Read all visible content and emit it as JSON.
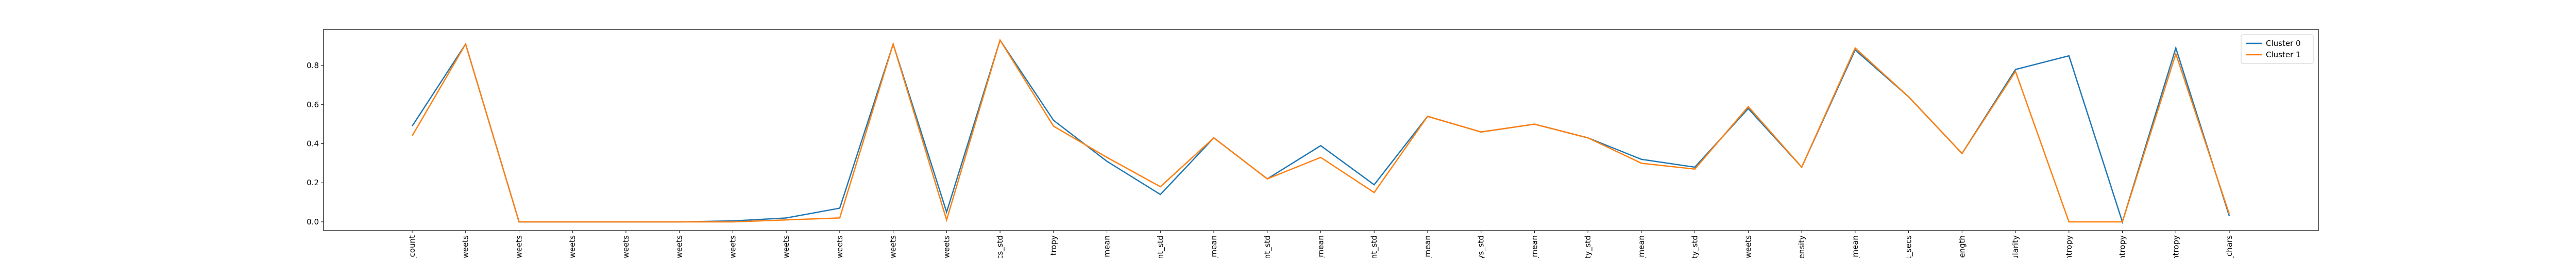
{
  "chart_data": {
    "type": "line",
    "categories": [
      "_count",
      "weets",
      "weets",
      "weets",
      "weets",
      "weets",
      "weets",
      "weets",
      "weets",
      "weets",
      "weets",
      "cs_std",
      "tropy",
      "_mean",
      "nt_std",
      "_mean",
      "nt_std",
      "_mean",
      "nt_std",
      "_mean",
      "ys_std",
      "_mean",
      "ty_std",
      "_mean",
      "ty_std",
      "weets",
      "ensity",
      "_mean",
      "t_secs",
      "ength",
      "ularity",
      "ntropy",
      "ntropy",
      "ntropy",
      "_chars"
    ],
    "series": [
      {
        "name": "Cluster 0",
        "color": "#1f77b4",
        "values": [
          0.49,
          0.91,
          0,
          0,
          0,
          0,
          0.005,
          0.02,
          0.07,
          0.91,
          0.05,
          0.93,
          0.52,
          0.31,
          0.14,
          0.43,
          0.22,
          0.39,
          0.19,
          0.54,
          0.46,
          0.5,
          0.43,
          0.32,
          0.28,
          0.58,
          0.28,
          0.88,
          0.64,
          0.35,
          0.78,
          0.85,
          0.0,
          0.89,
          0.03
        ]
      },
      {
        "name": "Cluster 1",
        "color": "#ff7f0e",
        "values": [
          0.44,
          0.91,
          0,
          0,
          0,
          0,
          0,
          0.01,
          0.02,
          0.91,
          0.01,
          0.93,
          0.49,
          0.33,
          0.18,
          0.43,
          0.22,
          0.33,
          0.15,
          0.54,
          0.46,
          0.5,
          0.43,
          0.3,
          0.27,
          0.59,
          0.28,
          0.89,
          0.64,
          0.35,
          0.77,
          0,
          0,
          0.86,
          0.04
        ]
      }
    ],
    "ylim": [
      -0.045,
      0.985
    ],
    "yticks": [
      {
        "value": 0,
        "label": "0.0"
      },
      0.2,
      0.4,
      0.6,
      0.8
    ],
    "grid": false,
    "legend": "upper right"
  }
}
